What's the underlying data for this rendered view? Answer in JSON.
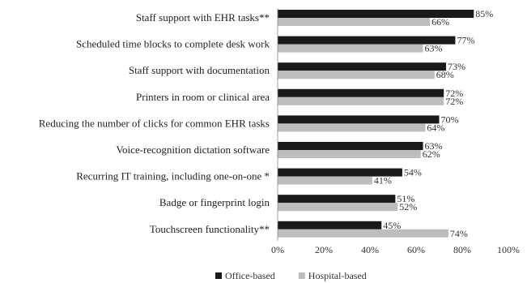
{
  "chart_data": {
    "type": "bar",
    "orientation": "horizontal",
    "categories": [
      "Staff support with EHR tasks**",
      "Scheduled time blocks to complete desk work",
      "Staff support with documentation",
      "Printers in room or clinical area",
      "Reducing the number of clicks for common EHR tasks",
      "Voice-recognition dictation software",
      "Recurring IT training, including one-on-one *",
      "Badge or fingerprint login",
      "Touchscreen functionality**"
    ],
    "series": [
      {
        "name": "Office-based",
        "color": "#1a1a1a",
        "values": [
          85,
          77,
          73,
          72,
          70,
          63,
          54,
          51,
          45
        ],
        "labels": [
          "85%",
          "77%",
          "73%",
          "72%",
          "70%",
          "63%",
          "54%",
          "51%",
          "45%"
        ]
      },
      {
        "name": "Hospital-based",
        "color": "#bdbdbd",
        "values": [
          66,
          63,
          68,
          72,
          64,
          62,
          41,
          52,
          74
        ],
        "labels": [
          "66%",
          "63%",
          "68%",
          "72%",
          "64%",
          "62%",
          "41%",
          "52%",
          "74%"
        ]
      }
    ],
    "xlim": [
      0,
      100
    ],
    "xticks": [
      0,
      20,
      40,
      60,
      80,
      100
    ],
    "xtick_labels": [
      "0%",
      "20%",
      "40%",
      "60%",
      "80%",
      "100%"
    ],
    "grid": false,
    "legend_position": "bottom-center"
  }
}
